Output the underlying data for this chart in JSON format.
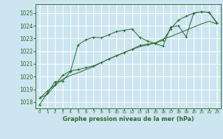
{
  "title": "Graphe pression niveau de la mer (hPa)",
  "bg_color": "#cce5f0",
  "grid_color": "#ffffff",
  "line_color": "#2d6a2d",
  "x_labels": [
    "0",
    "1",
    "2",
    "3",
    "4",
    "5",
    "6",
    "7",
    "8",
    "9",
    "10",
    "11",
    "12",
    "13",
    "14",
    "15",
    "16",
    "17",
    "18",
    "19",
    "20",
    "21",
    "22",
    "23"
  ],
  "ylim": [
    1017.5,
    1025.7
  ],
  "yticks": [
    1018,
    1019,
    1020,
    1021,
    1022,
    1023,
    1024,
    1025
  ],
  "main_series": [
    1017.8,
    1018.7,
    1019.6,
    1019.65,
    1020.4,
    1022.5,
    1022.9,
    1023.1,
    1023.05,
    1023.3,
    1023.55,
    1023.65,
    1023.75,
    1023.1,
    1022.8,
    1022.6,
    1022.4,
    1023.9,
    1024.0,
    1023.15,
    1025.0,
    1025.1,
    1025.05,
    1024.2
  ],
  "line2_series": [
    1018.3,
    1018.6,
    1019.3,
    1019.8,
    1020.1,
    1020.3,
    1020.55,
    1020.8,
    1021.1,
    1021.4,
    1021.65,
    1021.9,
    1022.15,
    1022.35,
    1022.5,
    1022.65,
    1022.95,
    1023.15,
    1023.4,
    1023.65,
    1023.9,
    1024.15,
    1024.35,
    1024.15
  ],
  "line3_series": [
    1018.3,
    1018.85,
    1019.35,
    1020.1,
    1020.45,
    1020.55,
    1020.7,
    1020.85,
    1021.1,
    1021.4,
    1021.65,
    1021.9,
    1022.15,
    1022.45,
    1022.55,
    1022.65,
    1022.85,
    1023.75,
    1024.45,
    1024.75,
    1025.0,
    1025.1,
    1025.05,
    1024.25
  ]
}
